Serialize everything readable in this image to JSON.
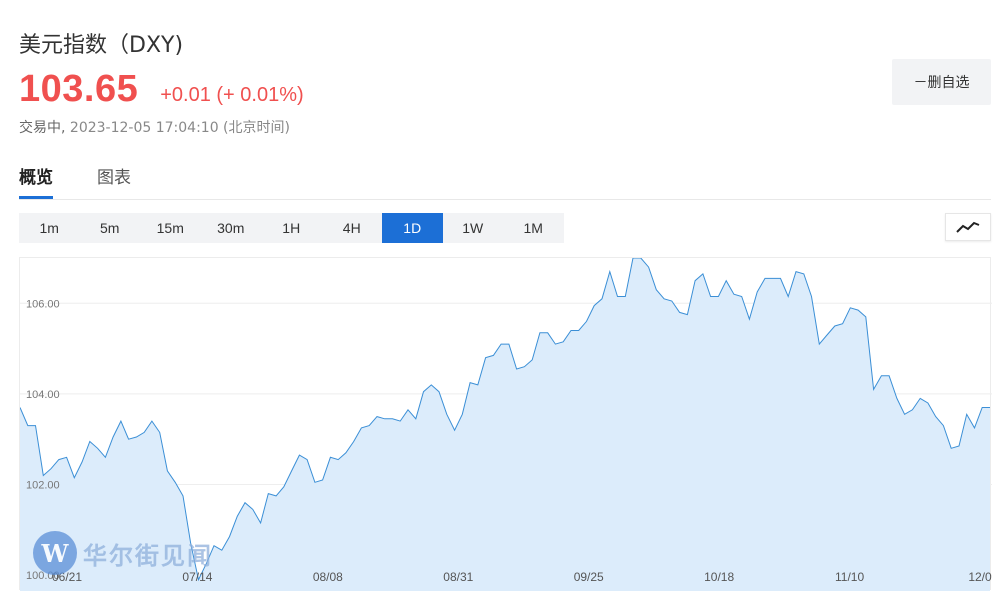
{
  "header": {
    "title": "美元指数（DXY)",
    "price": "103.65",
    "change": "+0.01 (+ 0.01%)",
    "status": "交易中,",
    "timestamp": "2023-12-05 17:04:10 (北京时间)",
    "watch_button": "－删自选"
  },
  "tabs": [
    {
      "label": "概览",
      "active": true
    },
    {
      "label": "图表",
      "active": false
    }
  ],
  "periods": [
    {
      "label": "1m",
      "active": false
    },
    {
      "label": "5m",
      "active": false
    },
    {
      "label": "15m",
      "active": false
    },
    {
      "label": "30m",
      "active": false
    },
    {
      "label": "1H",
      "active": false
    },
    {
      "label": "4H",
      "active": false
    },
    {
      "label": "1D",
      "active": true
    },
    {
      "label": "1W",
      "active": false
    },
    {
      "label": "1M",
      "active": false
    }
  ],
  "chart_type_icon": "line-chart-icon",
  "watermark": {
    "logo_text": "W",
    "text": "华尔街见闻"
  },
  "colors": {
    "accent": "#1c6fd6",
    "up": "#f0504f",
    "line": "#3b8fd6",
    "fill": "#dcecfb"
  },
  "chart_data": {
    "type": "area",
    "x_ticks": [
      "06/21",
      "07/14",
      "08/08",
      "08/31",
      "09/25",
      "10/18",
      "11/10",
      "12/0"
    ],
    "y_ticks": [
      100.0,
      102.0,
      104.0,
      106.0
    ],
    "y_tick_labels": [
      "100.00",
      "102.00",
      "104.00",
      "106.00"
    ],
    "ylim": [
      99.65,
      107.0
    ],
    "grid": true,
    "values": [
      103.7,
      103.3,
      103.3,
      102.2,
      102.35,
      102.55,
      102.6,
      102.15,
      102.5,
      102.95,
      102.8,
      102.6,
      103.05,
      103.4,
      103.0,
      103.05,
      103.15,
      103.4,
      103.15,
      102.3,
      102.05,
      101.75,
      100.7,
      99.9,
      100.25,
      100.65,
      100.55,
      100.85,
      101.3,
      101.6,
      101.45,
      101.15,
      101.8,
      101.75,
      101.95,
      102.3,
      102.65,
      102.55,
      102.05,
      102.1,
      102.6,
      102.55,
      102.7,
      102.95,
      103.25,
      103.3,
      103.5,
      103.45,
      103.45,
      103.4,
      103.65,
      103.45,
      104.05,
      104.2,
      104.05,
      103.55,
      103.2,
      103.55,
      104.25,
      104.2,
      104.8,
      104.85,
      105.1,
      105.1,
      104.55,
      104.6,
      104.75,
      105.35,
      105.35,
      105.1,
      105.15,
      105.4,
      105.4,
      105.6,
      105.95,
      106.1,
      106.7,
      106.15,
      106.15,
      107.0,
      107.0,
      106.8,
      106.3,
      106.1,
      106.05,
      105.8,
      105.75,
      106.5,
      106.65,
      106.15,
      106.15,
      106.5,
      106.2,
      106.15,
      105.65,
      106.25,
      106.55,
      106.55,
      106.55,
      106.15,
      106.7,
      106.65,
      106.15,
      105.1,
      105.3,
      105.5,
      105.55,
      105.9,
      105.85,
      105.7,
      104.1,
      104.4,
      104.4,
      103.9,
      103.55,
      103.65,
      103.9,
      103.8,
      103.5,
      103.3,
      102.8,
      102.85,
      103.55,
      103.25,
      103.7,
      103.7
    ]
  }
}
